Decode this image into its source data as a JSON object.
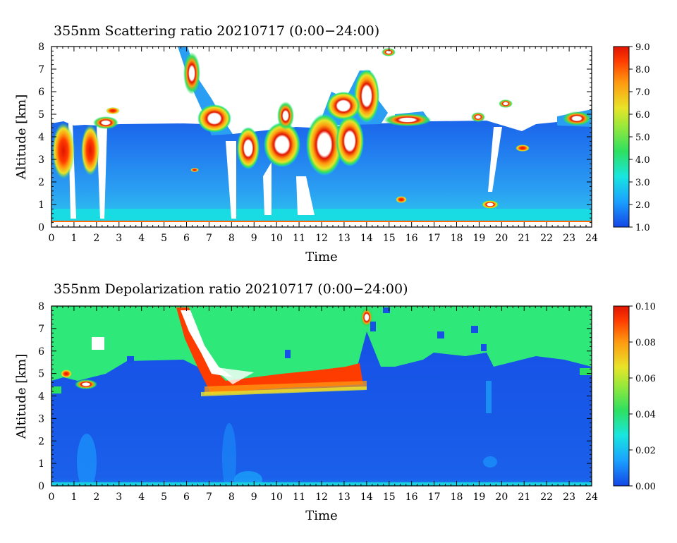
{
  "chart_data": [
    {
      "type": "heatmap",
      "title": "355nm Scattering ratio  20210717 (0:00−24:00)",
      "xlabel": "Time",
      "ylabel": "Altitude [km]",
      "x_ticks": [
        "0",
        "1",
        "2",
        "3",
        "4",
        "5",
        "6",
        "7",
        "8",
        "9",
        "10",
        "11",
        "12",
        "13",
        "14",
        "15",
        "16",
        "17",
        "18",
        "19",
        "20",
        "21",
        "22",
        "23",
        "24"
      ],
      "y_ticks": [
        "0",
        "1",
        "2",
        "3",
        "4",
        "5",
        "6",
        "7",
        "8"
      ],
      "xlim": [
        0,
        24
      ],
      "ylim": [
        0,
        8
      ],
      "colorbar": {
        "ticks": [
          "1.0",
          "2.0",
          "3.0",
          "4.0",
          "5.0",
          "6.0",
          "7.0",
          "8.0",
          "9.0"
        ],
        "range": [
          1.0,
          9.0
        ],
        "colors": [
          "#1446e6",
          "#1aa0ff",
          "#18e6e0",
          "#2ee060",
          "#e8e428",
          "#ff9a10",
          "#ff3c00",
          "#e01400"
        ]
      },
      "features": {
        "aerosol_top_km": 4.5,
        "low_cloud_column_times": [
          0.7,
          1.8,
          8.6,
          9.4,
          10.5,
          12.2,
          13.1
        ],
        "uplifted_layer_times": [
          6.0,
          7.0
        ],
        "clear_gap_times": [
          0.3,
          2.4,
          8.1,
          11.3,
          19.3
        ]
      }
    },
    {
      "type": "heatmap",
      "title": "355nm Depolarization ratio  20210717 (0:00−24:00)",
      "xlabel": "Time",
      "ylabel": "Altitude [km]",
      "x_ticks": [
        "0",
        "1",
        "2",
        "3",
        "4",
        "5",
        "6",
        "7",
        "8",
        "9",
        "10",
        "11",
        "12",
        "13",
        "14",
        "15",
        "16",
        "17",
        "18",
        "19",
        "20",
        "21",
        "22",
        "23",
        "24"
      ],
      "y_ticks": [
        "0",
        "1",
        "2",
        "3",
        "4",
        "5",
        "6",
        "7",
        "8"
      ],
      "xlim": [
        0,
        24
      ],
      "ylim": [
        0,
        8
      ],
      "colorbar": {
        "ticks": [
          "0.00",
          "0.02",
          "0.04",
          "0.06",
          "0.08",
          "0.10"
        ],
        "range": [
          0.0,
          0.1
        ],
        "colors": [
          "#1446e6",
          "#1aa0ff",
          "#18e6e0",
          "#2ee060",
          "#e8e428",
          "#ff9a10",
          "#ff3c00",
          "#e01400"
        ]
      },
      "features": {
        "background_value": 0.04,
        "layer_top_km": 5.5,
        "depolarizing_layer_times": [
          6.0,
          13.8
        ]
      }
    }
  ]
}
